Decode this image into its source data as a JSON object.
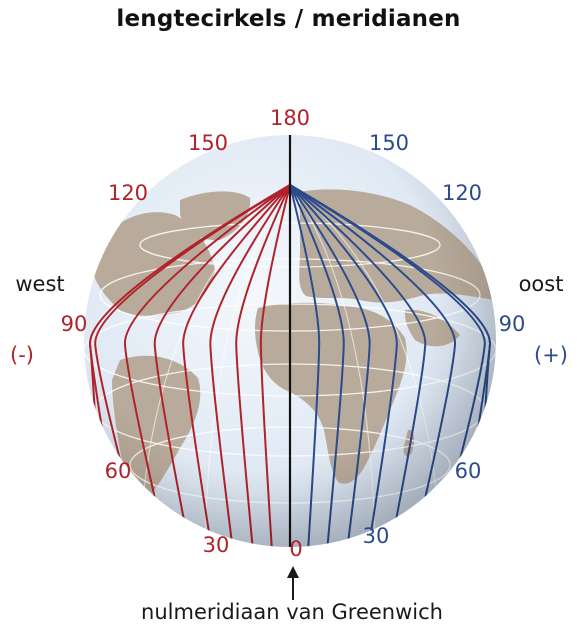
{
  "title": "lengtecirkels / meridianen",
  "colors": {
    "west": "#b0232a",
    "east": "#2b4b8c",
    "prime": "#111111",
    "ocean": "#dfe8f4",
    "land": "#b9ab9b",
    "graticule": "#ffffff"
  },
  "sides": {
    "west": "west",
    "west_sign": "(-)",
    "east": "oost",
    "east_sign": "(+)"
  },
  "labels": {
    "top": "180",
    "bottom": "0",
    "west": [
      "150",
      "120",
      "90",
      "60",
      "30"
    ],
    "east": [
      "150",
      "120",
      "90",
      "60",
      "30"
    ]
  },
  "caption": "nulmeridiaan van Greenwich",
  "icons": {
    "pointer": "arrow-up-icon"
  }
}
